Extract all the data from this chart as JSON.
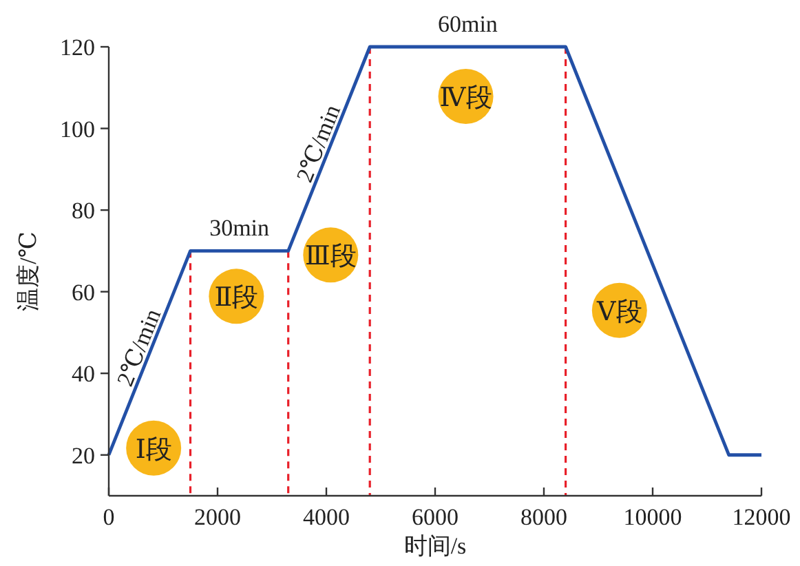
{
  "chart_data": {
    "type": "line",
    "xlabel": "时间/s",
    "ylabel": "温度/℃",
    "x": [
      0,
      1500,
      3300,
      4800,
      8400,
      11400,
      12000
    ],
    "series": [
      {
        "color": "#2350a6",
        "values": [
          20,
          70,
          70,
          120,
          120,
          20,
          20
        ]
      }
    ],
    "xlim": [
      0,
      12000
    ],
    "ylim": [
      10,
      120
    ],
    "xticks": [
      0,
      2000,
      4000,
      6000,
      8000,
      10000,
      12000
    ],
    "yticks": [
      20,
      40,
      60,
      80,
      100,
      120
    ],
    "grid": false,
    "marker": "none",
    "line_style": "solid",
    "ref_lines": [
      {
        "axis": "x",
        "value": 1500,
        "color": "#e8202a",
        "line_style": "dashed"
      },
      {
        "axis": "x",
        "value": 3300,
        "color": "#e8202a",
        "line_style": "dashed"
      },
      {
        "axis": "x",
        "value": 4800,
        "color": "#e8202a",
        "line_style": "dashed"
      },
      {
        "axis": "x",
        "value": 8400,
        "color": "#e8202a",
        "line_style": "dashed"
      }
    ],
    "annotations": [
      "2℃/min",
      "30min",
      "2℃/min",
      "60min",
      "Ⅰ段",
      "Ⅱ段",
      "Ⅲ段",
      "Ⅳ段",
      "Ⅴ段"
    ]
  }
}
